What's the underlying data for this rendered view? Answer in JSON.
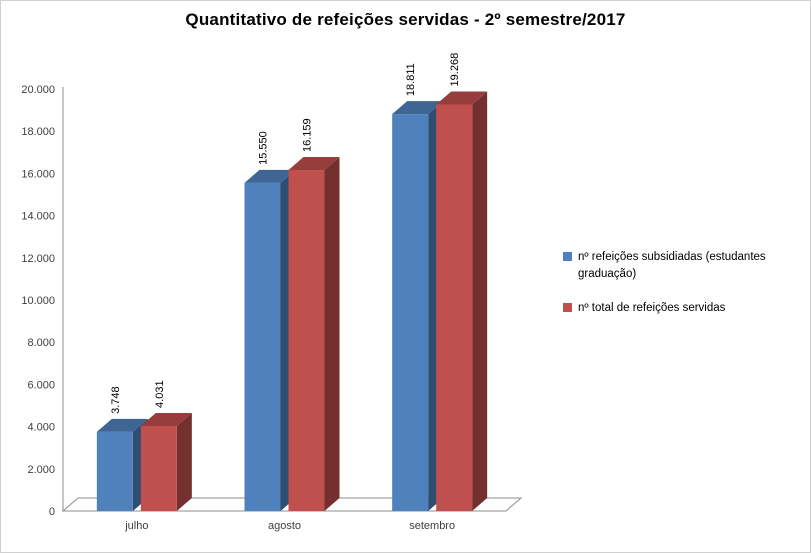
{
  "chart_data": {
    "type": "bar",
    "style": "3d-clustered-column",
    "title": "Quantitativo de refeições servidas - 2º semestre/2017",
    "categories": [
      "julho",
      "agosto",
      "setembro"
    ],
    "series": [
      {
        "name": "nº refeições subsidiadas (estudantes graduação)",
        "color": "#4F81BD",
        "values": [
          3748,
          15550,
          18811
        ],
        "labels": [
          "3.748",
          "15.550",
          "18.811"
        ]
      },
      {
        "name": "nº total de refeições servidas",
        "color": "#C0504D",
        "values": [
          4031,
          16159,
          19268
        ],
        "labels": [
          "4.031",
          "16.159",
          "19.268"
        ]
      }
    ],
    "xlabel": "",
    "ylabel": "",
    "ylim": [
      0,
      20000
    ],
    "ytick_step": 2000,
    "ytick_labels": [
      "0",
      "2.000",
      "4.000",
      "6.000",
      "8.000",
      "10.000",
      "12.000",
      "14.000",
      "16.000",
      "18.000",
      "20.000"
    ],
    "grid": false,
    "legend_position": "right"
  }
}
